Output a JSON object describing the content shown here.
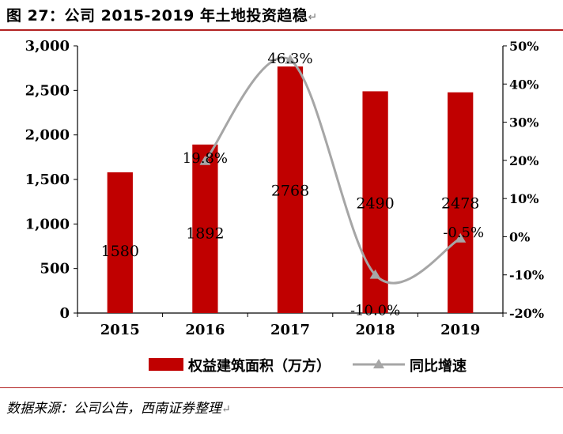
{
  "title": "图 27：公司 2015-2019 年土地投资趋稳",
  "source": "数据来源：公司公告，西南证券整理",
  "chart_data": {
    "type": "bar",
    "categories": [
      "2015",
      "2016",
      "2017",
      "2018",
      "2019"
    ],
    "series": [
      {
        "name": "权益建筑面积（万方）",
        "kind": "bar",
        "axis": "left",
        "color": "#c00000",
        "values": [
          1580,
          1892,
          2768,
          2490,
          2478
        ],
        "labels": [
          "1580",
          "1892",
          "2768",
          "2490",
          "2478"
        ]
      },
      {
        "name": "同比增速",
        "kind": "line",
        "axis": "right",
        "color": "#a6a6a6",
        "marker": "triangle",
        "values": [
          null,
          19.8,
          46.3,
          -10.0,
          -0.5
        ],
        "labels": [
          "",
          "19.8%",
          "46.3%",
          "-10.0%",
          "-0.5%"
        ]
      }
    ],
    "y_left": {
      "ylim": [
        0,
        3000
      ],
      "ticks": [
        0,
        500,
        1000,
        1500,
        2000,
        2500,
        3000
      ],
      "tick_labels": [
        "0",
        "500",
        "1,000",
        "1,500",
        "2,000",
        "2,500",
        "3,000"
      ]
    },
    "y_right": {
      "ylim": [
        -20,
        50
      ],
      "ticks": [
        -20,
        -10,
        0,
        10,
        20,
        30,
        40,
        50
      ],
      "tick_labels": [
        "-20%",
        "-10%",
        "0%",
        "10%",
        "20%",
        "30%",
        "40%",
        "50%"
      ]
    },
    "grid": false,
    "legend_position": "bottom"
  }
}
